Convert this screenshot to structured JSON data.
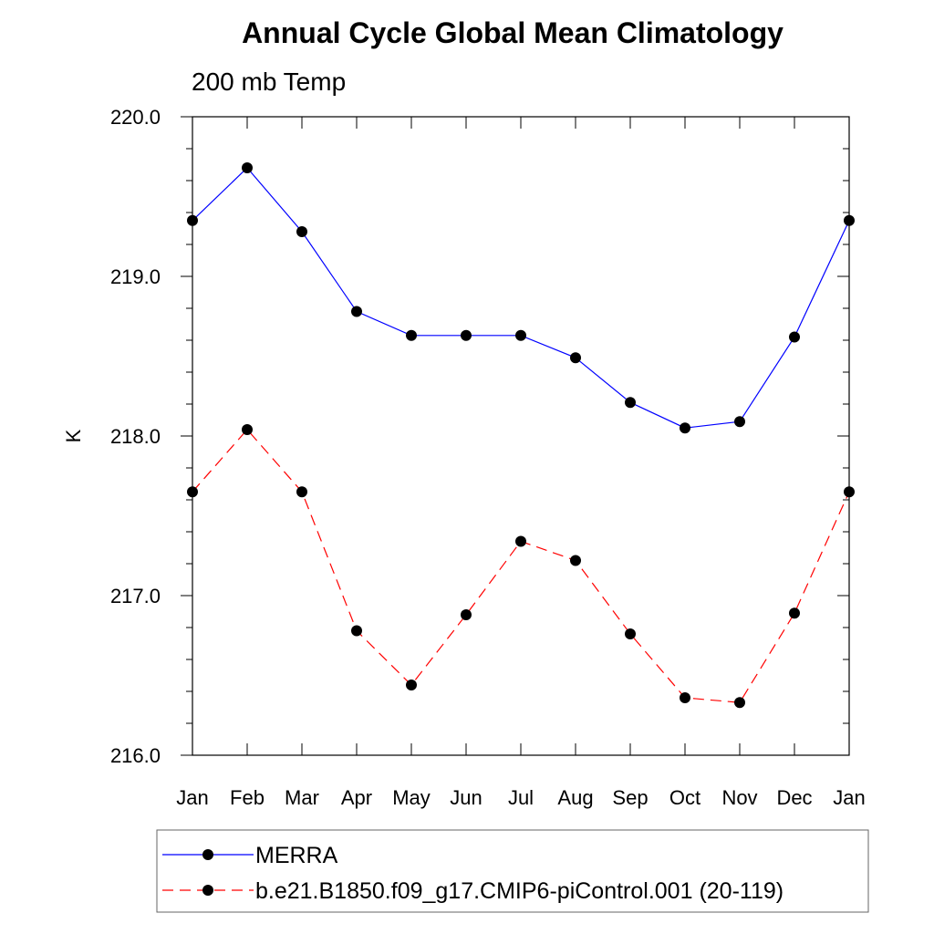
{
  "chart_data": {
    "type": "line",
    "title": "Annual Cycle Global Mean Climatology",
    "subtitle": "200 mb Temp",
    "xlabel": "",
    "ylabel": "K",
    "categories": [
      "Jan",
      "Feb",
      "Mar",
      "Apr",
      "May",
      "Jun",
      "Jul",
      "Aug",
      "Sep",
      "Oct",
      "Nov",
      "Dec",
      "Jan"
    ],
    "ylim": [
      216.0,
      220.0
    ],
    "yticks": [
      "216.0",
      "217.0",
      "218.0",
      "219.0",
      "220.0"
    ],
    "grid": false,
    "legend_position": "bottom",
    "series": [
      {
        "name": "MERRA",
        "color": "#0000ff",
        "line_style": "solid",
        "marker": "filled-circle",
        "values": [
          219.35,
          219.68,
          219.28,
          218.78,
          218.63,
          218.63,
          218.63,
          218.49,
          218.21,
          218.05,
          218.09,
          218.62,
          219.35
        ]
      },
      {
        "name": "b.e21.B1850.f09_g17.CMIP6-piControl.001 (20-119)",
        "color": "#ff0000",
        "line_style": "dashed",
        "marker": "filled-circle",
        "values": [
          217.65,
          218.04,
          217.65,
          216.78,
          216.44,
          216.88,
          217.34,
          217.22,
          216.76,
          216.36,
          216.33,
          216.89,
          217.65
        ]
      }
    ]
  }
}
